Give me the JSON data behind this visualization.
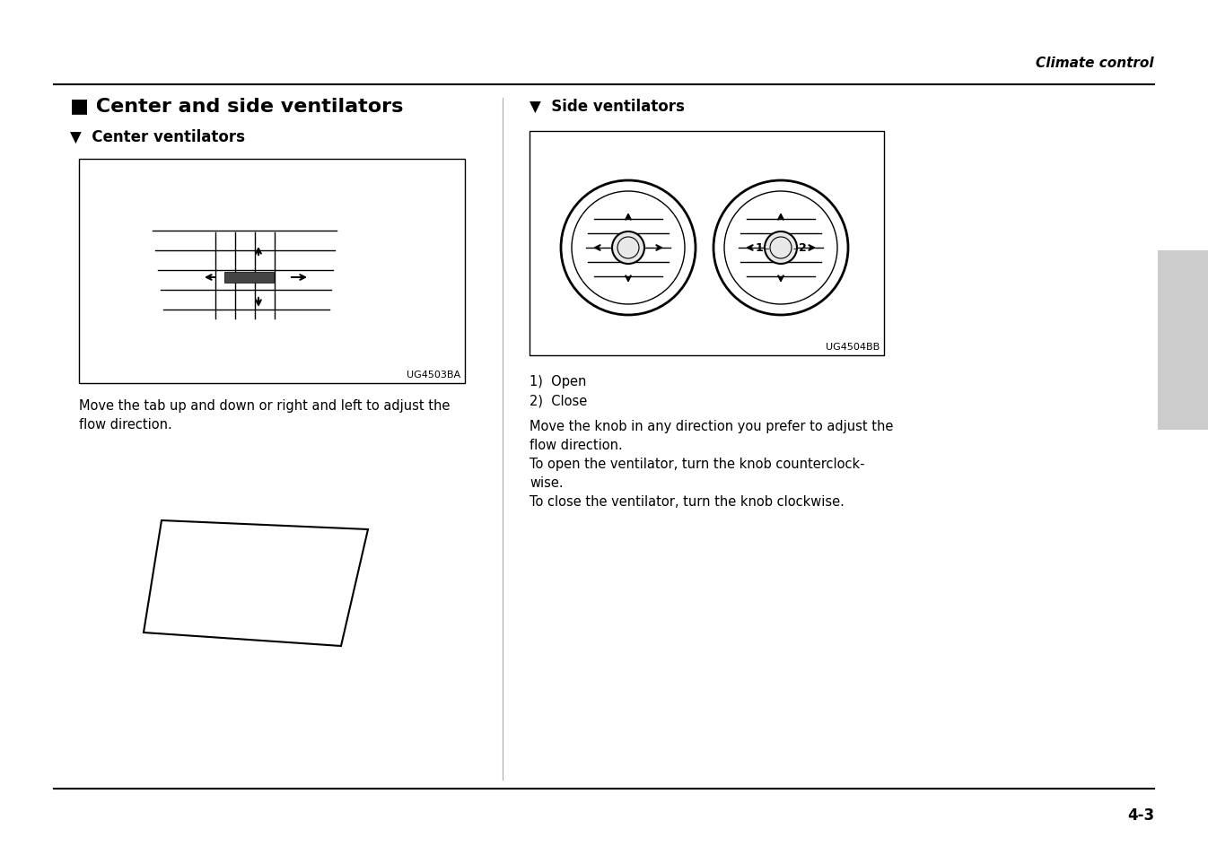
{
  "bg_color": "#ffffff",
  "header_text": "Climate control",
  "main_title": "■ Center and side ventilators",
  "left_subtitle": "▼  Center ventilators",
  "right_subtitle": "▼  Side ventilators",
  "left_image_label": "UG4503BA",
  "right_image_label": "UG4504BB",
  "left_body_text": "Move the tab up and down or right and left to adjust the\nflow direction.",
  "right_list": [
    "1)  Open",
    "2)  Close"
  ],
  "right_body_text": "Move the knob in any direction you prefer to adjust the\nflow direction.\nTo open the ventilator, turn the knob counterclock-\nwise.\nTo close the ventilator, turn the knob clockwise.",
  "page_number": "4-3",
  "divider_color": "#000000",
  "text_color": "#000000",
  "box_border_color": "#000000",
  "sidebar_color": "#cccccc"
}
